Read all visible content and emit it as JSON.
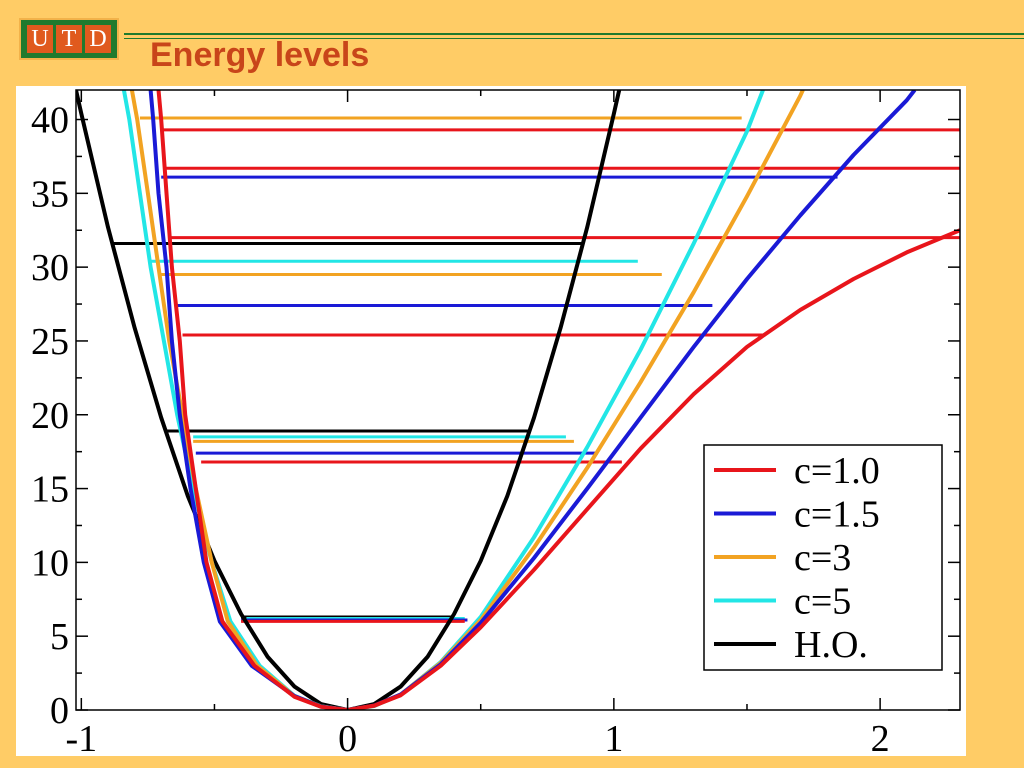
{
  "slide": {
    "title": "Energy levels",
    "logo_letters": [
      "U",
      "T",
      "D"
    ]
  },
  "colors": {
    "background": "#FFCC66",
    "title": "#C8451A",
    "logo_green": "#1F7A2E",
    "logo_orange": "#E05A1E"
  },
  "chart_data": {
    "type": "line",
    "title": "",
    "xlabel": "",
    "ylabel": "",
    "xlim": [
      -1.02,
      2.3
    ],
    "ylim": [
      0,
      42
    ],
    "grid": false,
    "legend_position": "bottom-right",
    "x_ticks": [
      -1,
      0,
      1,
      2
    ],
    "x_tick_labels": [
      "-1",
      "0",
      "1",
      "2"
    ],
    "y_ticks": [
      0,
      5,
      10,
      15,
      20,
      25,
      30,
      35,
      40
    ],
    "y_tick_labels": [
      "0",
      "5",
      "10",
      "15",
      "20",
      "25",
      "30",
      "35",
      "40"
    ],
    "series": [
      {
        "name": "c=1.0",
        "color": "#E8151B",
        "curve": [
          [
            -0.71,
            42
          ],
          [
            -0.7,
            40
          ],
          [
            -0.68,
            35
          ],
          [
            -0.66,
            30
          ],
          [
            -0.63,
            25
          ],
          [
            -0.61,
            20
          ],
          [
            -0.57,
            15
          ],
          [
            -0.53,
            10
          ],
          [
            -0.47,
            6
          ],
          [
            -0.35,
            3
          ],
          [
            -0.2,
            0.9
          ],
          [
            -0.1,
            0.22
          ],
          [
            0,
            0
          ],
          [
            0.1,
            0.3
          ],
          [
            0.2,
            1.0
          ],
          [
            0.35,
            3.0
          ],
          [
            0.5,
            5.6
          ],
          [
            0.7,
            9.5
          ],
          [
            0.9,
            13.6
          ],
          [
            1.1,
            17.7
          ],
          [
            1.3,
            21.4
          ],
          [
            1.5,
            24.6
          ],
          [
            1.7,
            27.1
          ],
          [
            1.9,
            29.2
          ],
          [
            2.1,
            31.0
          ],
          [
            2.3,
            32.5
          ]
        ],
        "levels": [
          {
            "E": 6.0,
            "x_left": -0.4,
            "x_right": 0.44
          },
          {
            "E": 16.8,
            "x_left": -0.55,
            "x_right": 1.03
          },
          {
            "E": 25.4,
            "x_left": -0.62,
            "x_right": 1.57
          },
          {
            "E": 32.0,
            "x_left": -0.67,
            "x_right": 2.3
          },
          {
            "E": 36.7,
            "x_left": -0.69,
            "x_right": 2.3
          },
          {
            "E": 39.3,
            "x_left": -0.7,
            "x_right": 2.3
          }
        ]
      },
      {
        "name": "c=1.5",
        "color": "#1A1AD6",
        "curve": [
          [
            -0.74,
            42
          ],
          [
            -0.73,
            40
          ],
          [
            -0.71,
            35
          ],
          [
            -0.68,
            30
          ],
          [
            -0.66,
            25
          ],
          [
            -0.63,
            20
          ],
          [
            -0.59,
            15
          ],
          [
            -0.54,
            10
          ],
          [
            -0.48,
            6
          ],
          [
            -0.36,
            3
          ],
          [
            -0.2,
            0.95
          ],
          [
            -0.1,
            0.23
          ],
          [
            0,
            0
          ],
          [
            0.1,
            0.3
          ],
          [
            0.2,
            1.05
          ],
          [
            0.35,
            3.1
          ],
          [
            0.5,
            5.9
          ],
          [
            0.7,
            10.3
          ],
          [
            0.9,
            15.0
          ],
          [
            1.1,
            19.8
          ],
          [
            1.3,
            24.6
          ],
          [
            1.5,
            29.2
          ],
          [
            1.7,
            33.5
          ],
          [
            1.9,
            37.6
          ],
          [
            2.1,
            41.3
          ],
          [
            2.13,
            42
          ]
        ],
        "levels": [
          {
            "E": 6.1,
            "x_left": -0.4,
            "x_right": 0.45
          },
          {
            "E": 17.4,
            "x_left": -0.57,
            "x_right": 0.94
          },
          {
            "E": 27.4,
            "x_left": -0.64,
            "x_right": 1.37
          },
          {
            "E": 36.1,
            "x_left": -0.7,
            "x_right": 1.84
          }
        ]
      },
      {
        "name": "c=3",
        "color": "#F2A322",
        "curve": [
          [
            -0.81,
            42
          ],
          [
            -0.79,
            40
          ],
          [
            -0.75,
            35
          ],
          [
            -0.71,
            30
          ],
          [
            -0.67,
            25
          ],
          [
            -0.62,
            20
          ],
          [
            -0.57,
            15
          ],
          [
            -0.51,
            10
          ],
          [
            -0.45,
            6
          ],
          [
            -0.34,
            3
          ],
          [
            -0.2,
            0.95
          ],
          [
            -0.1,
            0.24
          ],
          [
            0,
            0
          ],
          [
            0.1,
            0.28
          ],
          [
            0.2,
            1.05
          ],
          [
            0.35,
            3.2
          ],
          [
            0.5,
            6.1
          ],
          [
            0.7,
            11.0
          ],
          [
            0.9,
            16.4
          ],
          [
            1.1,
            22.2
          ],
          [
            1.3,
            28.3
          ],
          [
            1.5,
            34.8
          ],
          [
            1.7,
            41.6
          ],
          [
            1.71,
            42
          ]
        ],
        "levels": [
          {
            "E": 6.1,
            "x_left": -0.39,
            "x_right": 0.45
          },
          {
            "E": 18.2,
            "x_left": -0.58,
            "x_right": 0.85
          },
          {
            "E": 29.5,
            "x_left": -0.7,
            "x_right": 1.18
          },
          {
            "E": 40.1,
            "x_left": -0.78,
            "x_right": 1.48
          }
        ]
      },
      {
        "name": "c=5",
        "color": "#22E6E6",
        "curve": [
          [
            -0.84,
            42
          ],
          [
            -0.82,
            40
          ],
          [
            -0.78,
            35
          ],
          [
            -0.74,
            30
          ],
          [
            -0.69,
            25
          ],
          [
            -0.64,
            20
          ],
          [
            -0.58,
            15
          ],
          [
            -0.51,
            10
          ],
          [
            -0.44,
            6
          ],
          [
            -0.33,
            3
          ],
          [
            -0.2,
            0.97
          ],
          [
            -0.1,
            0.25
          ],
          [
            0,
            0
          ],
          [
            0.1,
            0.27
          ],
          [
            0.2,
            1.05
          ],
          [
            0.35,
            3.25
          ],
          [
            0.5,
            6.3
          ],
          [
            0.7,
            11.7
          ],
          [
            0.9,
            17.8
          ],
          [
            1.1,
            24.4
          ],
          [
            1.3,
            31.6
          ],
          [
            1.5,
            39.2
          ],
          [
            1.56,
            42
          ]
        ],
        "levels": [
          {
            "E": 6.2,
            "x_left": -0.38,
            "x_right": 0.44
          },
          {
            "E": 18.5,
            "x_left": -0.58,
            "x_right": 0.82
          },
          {
            "E": 30.4,
            "x_left": -0.74,
            "x_right": 1.09
          }
        ]
      },
      {
        "name": "H.O.",
        "color": "#000000",
        "curve": [
          [
            -1.02,
            42
          ],
          [
            -1.0,
            40.4
          ],
          [
            -0.9,
            32.7
          ],
          [
            -0.8,
            25.9
          ],
          [
            -0.7,
            19.8
          ],
          [
            -0.6,
            14.5
          ],
          [
            -0.5,
            10.1
          ],
          [
            -0.4,
            6.5
          ],
          [
            -0.3,
            3.6
          ],
          [
            -0.2,
            1.6
          ],
          [
            -0.1,
            0.4
          ],
          [
            0,
            0
          ],
          [
            0.1,
            0.4
          ],
          [
            0.2,
            1.6
          ],
          [
            0.3,
            3.6
          ],
          [
            0.4,
            6.5
          ],
          [
            0.5,
            10.1
          ],
          [
            0.6,
            14.5
          ],
          [
            0.7,
            19.8
          ],
          [
            0.8,
            25.9
          ],
          [
            0.9,
            32.7
          ],
          [
            1.0,
            40.4
          ],
          [
            1.02,
            42
          ]
        ],
        "levels": [
          {
            "E": 6.3,
            "x_left": -0.4,
            "x_right": 0.4
          },
          {
            "E": 18.9,
            "x_left": -0.68,
            "x_right": 0.68
          },
          {
            "E": 31.6,
            "x_left": -0.88,
            "x_right": 0.88
          }
        ]
      }
    ]
  }
}
